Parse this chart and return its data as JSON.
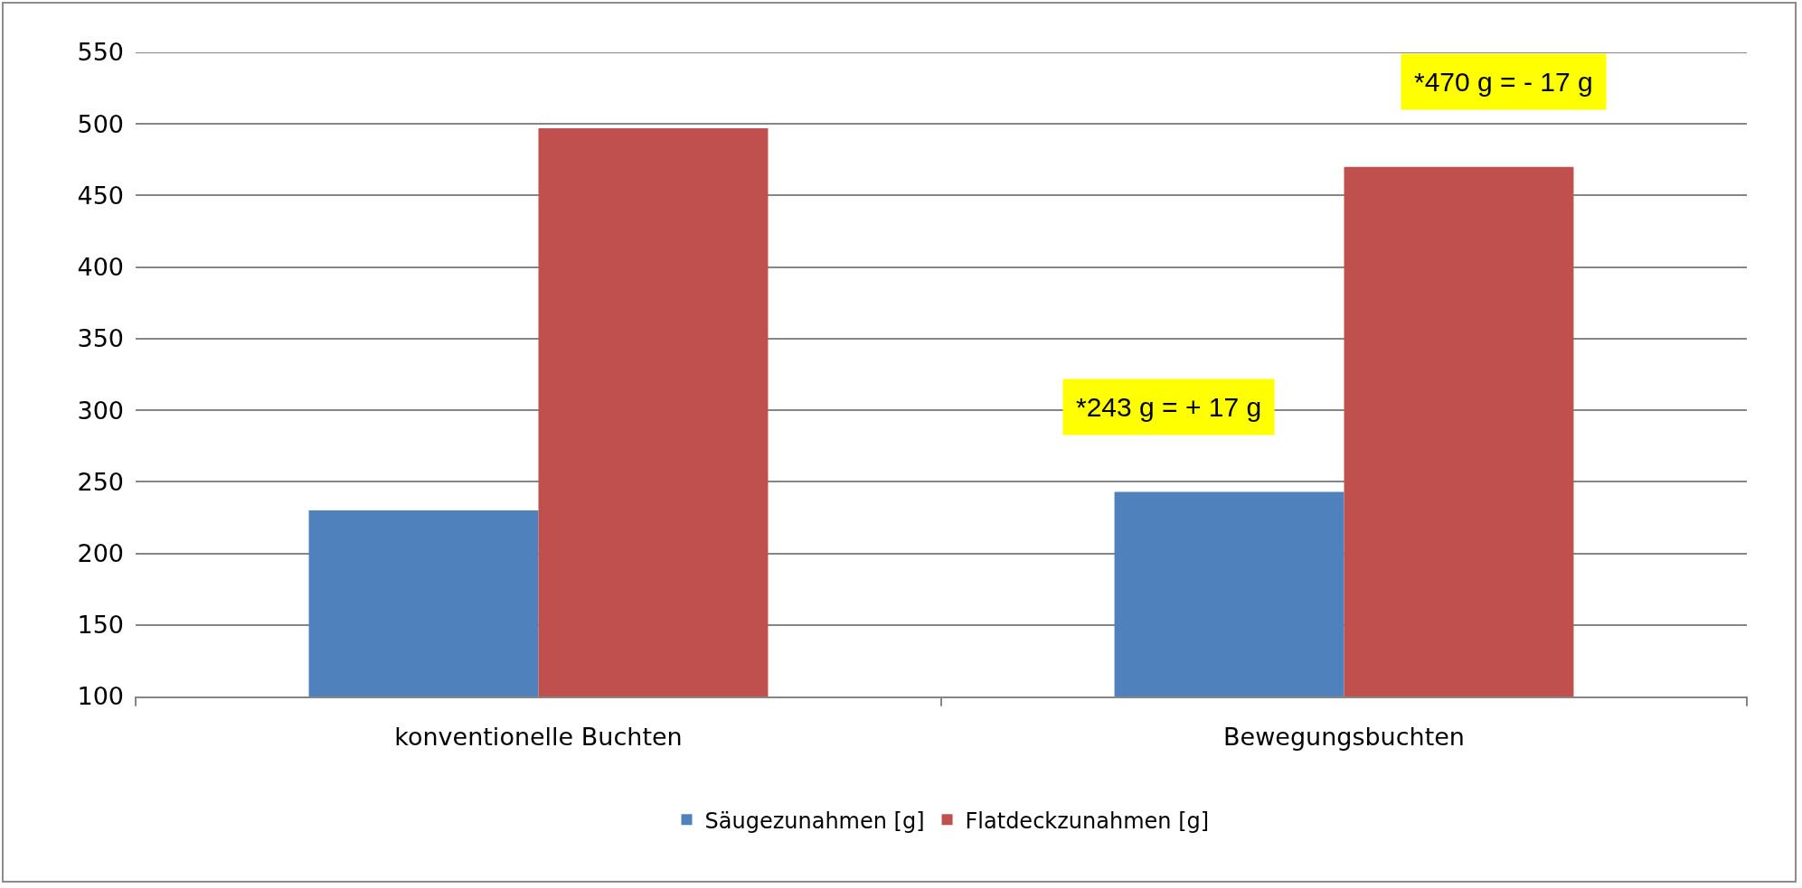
{
  "chart_data": {
    "type": "bar",
    "categories": [
      "konventionelle Buchten",
      "Bewegungsbuchten"
    ],
    "series": [
      {
        "name": "Säugezunahmen [g]",
        "color": "#4f81bd",
        "values": [
          230,
          243
        ]
      },
      {
        "name": "Flatdeckzunahmen [g]",
        "color": "#c0504d",
        "values": [
          497,
          470
        ]
      }
    ],
    "ylim": [
      100,
      550
    ],
    "yticks": [
      100,
      150,
      200,
      250,
      300,
      350,
      400,
      450,
      500,
      550
    ],
    "grid": "y",
    "legend": "bottom",
    "annotations": [
      "*470 g = - 17 g",
      "*243 g = + 17 g"
    ]
  }
}
